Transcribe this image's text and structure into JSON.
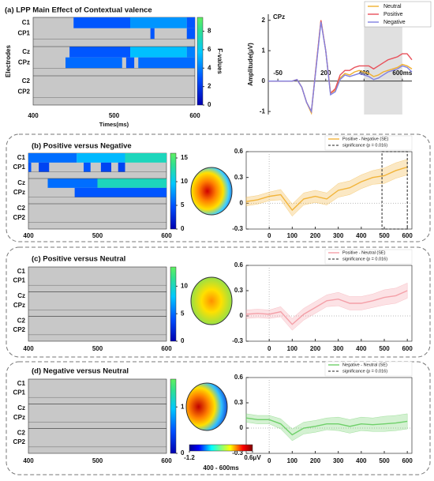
{
  "chart_data": [
    {
      "type": "heatmap",
      "title": "(a) LPP Main Effect of Contextual valence",
      "xlabel": "Times(ms)",
      "ylabel": "Electrodes",
      "clabel": "F-values",
      "rows": [
        "C1",
        "CP1",
        "Cz",
        "CPz",
        "C2",
        "CP2"
      ],
      "xlim": [
        400,
        600
      ],
      "xticks": [
        400,
        500,
        600
      ],
      "clim": [
        0,
        9.5
      ],
      "cticks": [
        0,
        2,
        4,
        6,
        8
      ],
      "segments": [
        [
          {
            "start": 450,
            "end": 520,
            "value": 3
          },
          {
            "start": 520,
            "end": 590,
            "value": 4.5
          },
          {
            "start": 590,
            "end": 600,
            "value": 3
          }
        ],
        [
          {
            "start": 545,
            "end": 550,
            "value": 3
          },
          {
            "start": 590,
            "end": 600,
            "value": 3
          }
        ],
        [
          {
            "start": 445,
            "end": 520,
            "value": 3
          },
          {
            "start": 520,
            "end": 590,
            "value": 5.5
          },
          {
            "start": 590,
            "end": 600,
            "value": 4
          }
        ],
        [
          {
            "start": 440,
            "end": 510,
            "value": 3.5
          },
          {
            "start": 515,
            "end": 525,
            "value": 3
          },
          {
            "start": 530,
            "end": 600,
            "value": 3.5
          }
        ],
        [],
        []
      ]
    },
    {
      "type": "line",
      "title": "CPz",
      "ylabel": "Amplitude(μV)",
      "xlim": [
        -100,
        650
      ],
      "ylim": [
        2.2,
        -1.1
      ],
      "xticks": [
        -50,
        200,
        400,
        {
          "value": 600,
          "label": "600ms"
        }
      ],
      "yticks": [
        -1,
        0,
        1,
        2
      ],
      "shade": [
        400,
        600
      ],
      "x": [
        -100,
        -75,
        -50,
        -25,
        0,
        25,
        50,
        75,
        100,
        125,
        150,
        175,
        200,
        225,
        250,
        275,
        300,
        325,
        350,
        375,
        400,
        425,
        450,
        475,
        500,
        525,
        550,
        575,
        600,
        625,
        650
      ],
      "series": [
        {
          "name": "Neutral",
          "color": "#f0b030",
          "values": [
            0,
            0,
            0,
            0,
            0,
            0,
            0.05,
            -0.2,
            -0.7,
            -1.05,
            0.5,
            2.0,
            1.0,
            -0.4,
            -0.3,
            0.1,
            0.25,
            0.2,
            0.3,
            0.35,
            0.3,
            0.25,
            0.15,
            0.2,
            0.3,
            0.35,
            0.4,
            0.45,
            0.55,
            0.5,
            0.4
          ]
        },
        {
          "name": "Positive",
          "color": "#e8505a",
          "values": [
            0,
            0,
            0,
            0,
            0,
            0,
            0.05,
            -0.2,
            -0.7,
            -1.0,
            0.5,
            2.0,
            1.0,
            -0.4,
            -0.25,
            0.2,
            0.35,
            0.35,
            0.45,
            0.5,
            0.5,
            0.5,
            0.4,
            0.5,
            0.6,
            0.7,
            0.75,
            0.8,
            0.9,
            0.9,
            0.7
          ]
        },
        {
          "name": "Negative",
          "color": "#8080e0",
          "values": [
            0,
            0,
            0,
            0,
            0,
            0,
            0.05,
            -0.2,
            -0.7,
            -1.0,
            0.45,
            1.95,
            1.0,
            -0.45,
            -0.35,
            0.05,
            0.2,
            0.15,
            0.2,
            0.25,
            0.2,
            0.15,
            0.05,
            0.1,
            0.2,
            0.3,
            0.35,
            0.4,
            0.5,
            0.45,
            0.3
          ]
        }
      ]
    },
    {
      "type": "heatmap",
      "title": "(b) Positive versus Negative",
      "rows": [
        "C1",
        "CP1",
        "Cz",
        "CPz",
        "C2",
        "CP2"
      ],
      "xlim": [
        400,
        600
      ],
      "xticks": [
        400,
        500,
        600
      ],
      "clim": [
        0,
        16
      ],
      "cticks": [
        0,
        5,
        10,
        15
      ],
      "segments": [
        [
          {
            "start": 400,
            "end": 470,
            "value": 6
          },
          {
            "start": 470,
            "end": 540,
            "value": 9
          },
          {
            "start": 540,
            "end": 600,
            "value": 12
          }
        ],
        [
          {
            "start": 400,
            "end": 404,
            "value": 5
          },
          {
            "start": 415,
            "end": 430,
            "value": 4
          },
          {
            "start": 480,
            "end": 490,
            "value": 5
          },
          {
            "start": 505,
            "end": 520,
            "value": 4
          },
          {
            "start": 530,
            "end": 540,
            "value": 4
          }
        ],
        [
          {
            "start": 428,
            "end": 500,
            "value": 6
          },
          {
            "start": 500,
            "end": 600,
            "value": 12
          }
        ],
        [
          {
            "start": 467,
            "end": 600,
            "value": 5
          }
        ],
        [],
        []
      ]
    },
    {
      "type": "line",
      "xlim": [
        -100,
        620
      ],
      "ylim": [
        0.6,
        -0.3
      ],
      "xticks": [
        0,
        100,
        200,
        300,
        400,
        500,
        600
      ],
      "yticks": [
        -0.3,
        0,
        0.3,
        0.6
      ],
      "highlight": [
        490,
        600
      ],
      "sig_label": "significance (p = 0.016)",
      "x": [
        -100,
        -50,
        0,
        50,
        100,
        150,
        200,
        250,
        300,
        350,
        400,
        450,
        500,
        550,
        600
      ],
      "series": [
        {
          "name": "Positive - Negative (SE)",
          "color": "#f2b43a",
          "values": [
            0.02,
            0.04,
            0.08,
            0.1,
            -0.08,
            0.05,
            0.08,
            0.05,
            0.15,
            0.18,
            0.25,
            0.3,
            0.32,
            0.38,
            0.42
          ],
          "se": [
            0.05,
            0.05,
            0.05,
            0.06,
            0.07,
            0.07,
            0.07,
            0.07,
            0.08,
            0.08,
            0.08,
            0.08,
            0.09,
            0.09,
            0.09
          ]
        }
      ]
    },
    {
      "type": "heatmap",
      "title": "(c) Positive versus Neutral",
      "rows": [
        "C1",
        "CP1",
        "Cz",
        "CPz",
        "C2",
        "CP2"
      ],
      "xlim": [
        400,
        600
      ],
      "xticks": [
        400,
        500,
        600
      ],
      "clim": [
        0,
        13.5
      ],
      "cticks": [
        0,
        5,
        10
      ],
      "segments": [
        [],
        [],
        [],
        [],
        [],
        []
      ]
    },
    {
      "type": "line",
      "xlim": [
        -100,
        620
      ],
      "ylim": [
        0.6,
        -0.3
      ],
      "xticks": [
        0,
        100,
        200,
        300,
        400,
        500,
        600
      ],
      "yticks": [
        -0.3,
        0,
        0.3,
        0.6
      ],
      "sig_label": "significance (p = 0.016)",
      "x": [
        -100,
        -50,
        0,
        50,
        100,
        150,
        200,
        250,
        300,
        350,
        400,
        450,
        500,
        550,
        600
      ],
      "series": [
        {
          "name": "Positive - Neutral (SE)",
          "color": "#f4a0a8",
          "values": [
            0.02,
            0.03,
            0.02,
            0.05,
            -0.1,
            0.02,
            0.1,
            0.18,
            0.2,
            0.15,
            0.15,
            0.18,
            0.22,
            0.24,
            0.3
          ],
          "se": [
            0.05,
            0.05,
            0.05,
            0.06,
            0.07,
            0.07,
            0.07,
            0.07,
            0.08,
            0.08,
            0.08,
            0.08,
            0.09,
            0.09,
            0.09
          ]
        }
      ]
    },
    {
      "type": "heatmap",
      "title": "(d) Negative versus Neutral",
      "rows": [
        "C1",
        "CP1",
        "Cz",
        "CPz",
        "C2",
        "CP2"
      ],
      "xlim": [
        400,
        600
      ],
      "xticks": [
        400,
        500,
        600
      ],
      "clim": [
        0,
        1.6
      ],
      "cticks": [
        0,
        1
      ],
      "segments": [
        [],
        [],
        [],
        [],
        [],
        []
      ]
    },
    {
      "type": "line",
      "xlim": [
        -100,
        620
      ],
      "ylim": [
        0.6,
        -0.3
      ],
      "xticks": [
        0,
        100,
        200,
        300,
        400,
        500,
        600
      ],
      "yticks": [
        -0.3,
        0,
        0.3,
        0.6
      ],
      "sig_label": "significance (p = 0.016)",
      "x": [
        -100,
        -50,
        0,
        50,
        100,
        150,
        200,
        250,
        300,
        350,
        400,
        450,
        500,
        550,
        600
      ],
      "series": [
        {
          "name": "Negative - Neutral (SE)",
          "color": "#6fd06a",
          "values": [
            0.12,
            0.1,
            0.1,
            0.05,
            -0.08,
            0.0,
            0.02,
            0.05,
            0.05,
            0.02,
            0.05,
            0.04,
            0.05,
            0.06,
            0.08
          ],
          "se": [
            0.05,
            0.05,
            0.05,
            0.06,
            0.07,
            0.07,
            0.07,
            0.07,
            0.08,
            0.08,
            0.08,
            0.08,
            0.09,
            0.09,
            0.09
          ]
        }
      ]
    },
    {
      "type": "colorbar",
      "clim": [
        -1.2,
        0.6
      ],
      "ticks": [
        -1.2,
        {
          "value": 0.6,
          "label": "0.6μV"
        }
      ],
      "label": "400 - 600ms"
    }
  ]
}
